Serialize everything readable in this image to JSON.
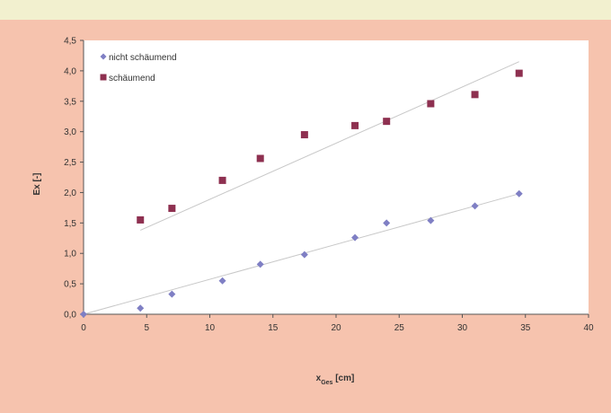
{
  "chart_data": {
    "type": "scatter",
    "xlabel": "x_Ges [cm]",
    "ylabel": "Ex [-]",
    "xlim": [
      0,
      40
    ],
    "ylim": [
      0,
      4.5
    ],
    "x_ticks": [
      "0",
      "5",
      "10",
      "15",
      "20",
      "25",
      "30",
      "35",
      "40"
    ],
    "y_ticks": [
      "0,0",
      "0,5",
      "1,0",
      "1,5",
      "2,0",
      "2,5",
      "3,0",
      "3,5",
      "4,0",
      "4,5"
    ],
    "legend_position": "top-left",
    "grid": false,
    "series": [
      {
        "name": "nicht schäumend",
        "marker": "diamond",
        "color": "#7f7fc4",
        "x": [
          0,
          4.5,
          7,
          11,
          14,
          17.5,
          21.5,
          24,
          27.5,
          31,
          34.5
        ],
        "y": [
          0.0,
          0.1,
          0.33,
          0.55,
          0.82,
          0.98,
          1.26,
          1.5,
          1.54,
          1.78,
          1.98
        ],
        "trendline": [
          [
            0,
            0.0
          ],
          [
            34.5,
            1.98
          ]
        ]
      },
      {
        "name": "schäumend",
        "marker": "square",
        "color": "#8e3050",
        "x": [
          4.5,
          7,
          11,
          14,
          17.5,
          21.5,
          24,
          27.5,
          31,
          34.5
        ],
        "y": [
          1.55,
          1.74,
          2.2,
          2.56,
          2.95,
          3.1,
          3.17,
          3.46,
          3.61,
          3.96
        ],
        "trendline": [
          [
            4.5,
            1.38
          ],
          [
            34.5,
            4.15
          ]
        ]
      }
    ]
  }
}
